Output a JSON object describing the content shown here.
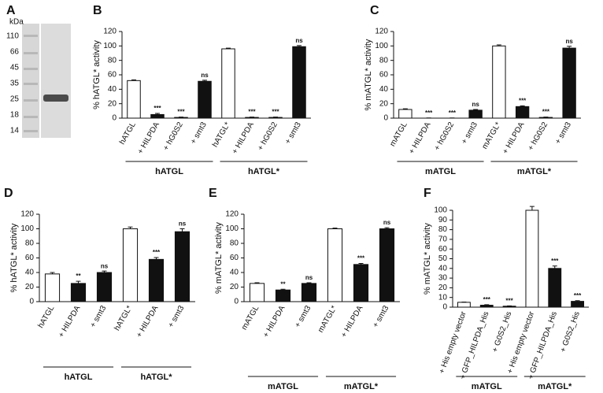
{
  "chart_data": [
    {
      "type": "gel",
      "title": "A",
      "ylabel": "kDa",
      "yticks": [
        110,
        66,
        45,
        35,
        25,
        18,
        14
      ]
    },
    {
      "type": "bar",
      "title": "B",
      "ylabel": "% hATGL* activity",
      "ylim": [
        0,
        120
      ],
      "yticks": [
        0,
        20,
        40,
        60,
        80,
        100,
        120
      ],
      "groups": [
        {
          "label": "hATGL",
          "categories": [
            "hATGL",
            "+ HILPDA",
            "+ hG0S2",
            "+ smt3"
          ],
          "values": [
            52,
            5,
            1,
            51
          ],
          "errors": [
            1,
            1.5,
            0.5,
            1.5
          ],
          "colors": [
            "#ffffff",
            "#111111",
            "#111111",
            "#111111"
          ],
          "annotations": [
            null,
            "***",
            "***",
            "ns"
          ]
        },
        {
          "label": "hATGL*",
          "categories": [
            "hATGL*",
            "+ HILPDA",
            "+ hG0S2",
            "+ smt3"
          ],
          "values": [
            96,
            1,
            1,
            99
          ],
          "errors": [
            1,
            0.5,
            0.5,
            1.5
          ],
          "colors": [
            "#ffffff",
            "#111111",
            "#111111",
            "#111111"
          ],
          "annotations": [
            null,
            "***",
            "***",
            "ns"
          ]
        }
      ]
    },
    {
      "type": "bar",
      "title": "C",
      "ylabel": "% mATGL* activity",
      "ylim": [
        0,
        120
      ],
      "yticks": [
        0,
        20,
        40,
        60,
        80,
        100,
        120
      ],
      "groups": [
        {
          "label": "mATGL",
          "categories": [
            "mATGL",
            "+ HILPDA",
            "+ hG0S2",
            "+ smt3"
          ],
          "values": [
            12,
            0,
            0,
            11
          ],
          "errors": [
            1,
            0.3,
            0.3,
            1
          ],
          "colors": [
            "#ffffff",
            "#111111",
            "#111111",
            "#111111"
          ],
          "annotations": [
            null,
            "***",
            "***",
            "ns"
          ]
        },
        {
          "label": "mATGL*",
          "categories": [
            "mATGL*",
            "+ HILPDA",
            "+ hG0S2",
            "+ smt3"
          ],
          "values": [
            100,
            16,
            1,
            97
          ],
          "errors": [
            1.5,
            1,
            0.5,
            2.5
          ],
          "colors": [
            "#ffffff",
            "#111111",
            "#111111",
            "#111111"
          ],
          "annotations": [
            null,
            "***",
            "***",
            "ns"
          ]
        }
      ]
    },
    {
      "type": "bar",
      "title": "D",
      "ylabel": "% hATGL* activity",
      "ylim": [
        0,
        120
      ],
      "yticks": [
        0,
        20,
        40,
        60,
        80,
        100,
        120
      ],
      "groups": [
        {
          "label": "hATGL",
          "categories": [
            "hATGL",
            "+ HILPDA",
            "+ smt3"
          ],
          "values": [
            38,
            25,
            40
          ],
          "errors": [
            2,
            3,
            2
          ],
          "colors": [
            "#ffffff",
            "#111111",
            "#111111"
          ],
          "annotations": [
            null,
            "**",
            "ns"
          ]
        },
        {
          "label": "hATGL*",
          "categories": [
            "hATGL*",
            "+ HILPDA",
            "+ smt3"
          ],
          "values": [
            100,
            58,
            96
          ],
          "errors": [
            2.5,
            2.5,
            4
          ],
          "colors": [
            "#ffffff",
            "#111111",
            "#111111"
          ],
          "annotations": [
            null,
            "***",
            "ns"
          ]
        }
      ]
    },
    {
      "type": "bar",
      "title": "E",
      "ylabel": "% mATGL* activity",
      "ylim": [
        0,
        120
      ],
      "yticks": [
        0,
        20,
        40,
        60,
        80,
        100,
        120
      ],
      "groups": [
        {
          "label": "mATGL",
          "categories": [
            "mATGL",
            "+ HILPDA",
            "+ smt3"
          ],
          "values": [
            25,
            16,
            25
          ],
          "errors": [
            1,
            1,
            1
          ],
          "colors": [
            "#ffffff",
            "#111111",
            "#111111"
          ],
          "annotations": [
            null,
            "**",
            "ns"
          ]
        },
        {
          "label": "mATGL*",
          "categories": [
            "mATGL*",
            "+ HILPDA",
            "+ smt3"
          ],
          "values": [
            100,
            51,
            100
          ],
          "errors": [
            1,
            1.5,
            1.5
          ],
          "colors": [
            "#ffffff",
            "#111111",
            "#111111"
          ],
          "annotations": [
            null,
            "***",
            "ns"
          ]
        }
      ]
    },
    {
      "type": "bar",
      "title": "F",
      "ylabel": "% mATGL* activity",
      "ylim": [
        0,
        100
      ],
      "yticks": [
        0,
        10,
        20,
        30,
        40,
        50,
        60,
        70,
        80,
        90,
        100
      ],
      "groups": [
        {
          "label": "mATGL",
          "categories": [
            "+ His empty vector",
            "+ GFP_HILPDA_His",
            "+ G0S2_His"
          ],
          "values": [
            5,
            2,
            1
          ],
          "errors": [
            0.3,
            0.5,
            0.3
          ],
          "colors": [
            "#ffffff",
            "#111111",
            "#111111"
          ],
          "annotations": [
            null,
            "***",
            "***"
          ]
        },
        {
          "label": "mATGL*",
          "categories": [
            "+ His empty vector",
            "+ GFP_HILPDA_His",
            "+ G0S2_His"
          ],
          "values": [
            100,
            40,
            6
          ],
          "errors": [
            4,
            2.5,
            0.7
          ],
          "colors": [
            "#ffffff",
            "#111111",
            "#111111"
          ],
          "annotations": [
            null,
            "***",
            "***"
          ]
        }
      ]
    }
  ]
}
